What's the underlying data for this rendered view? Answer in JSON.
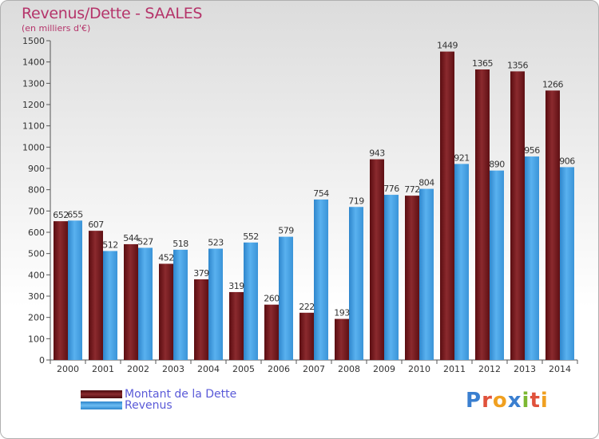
{
  "title": "Revenus/Dette - SAALES",
  "subtitle": "(en milliers d'€)",
  "legend": {
    "items": [
      {
        "label": "Montant de la Dette",
        "color": "#7a1f24"
      },
      {
        "label": "Revenus",
        "color": "#3f9de0"
      }
    ]
  },
  "logo": {
    "text": "Proxiti",
    "letters": [
      {
        "ch": "P",
        "color": "#3a7fd0"
      },
      {
        "ch": "r",
        "color": "#e0523c"
      },
      {
        "ch": "o",
        "color": "#f0a020"
      },
      {
        "ch": "x",
        "color": "#3a7fd0"
      },
      {
        "ch": "i",
        "color": "#7cb832"
      },
      {
        "ch": "t",
        "color": "#e0523c"
      },
      {
        "ch": "i",
        "color": "#f0a020"
      }
    ]
  },
  "chart_data": {
    "type": "bar",
    "title": "Revenus/Dette - SAALES",
    "subtitle": "(en milliers d'€)",
    "categories": [
      "2000",
      "2001",
      "2002",
      "2003",
      "2004",
      "2005",
      "2006",
      "2007",
      "2008",
      "2009",
      "2010",
      "2011",
      "2012",
      "2013",
      "2014"
    ],
    "series": [
      {
        "name": "Montant de la Dette",
        "color": "#7a1f24",
        "values": [
          652,
          607,
          544,
          452,
          379,
          319,
          260,
          222,
          193,
          943,
          772,
          1449,
          1365,
          1356,
          1266
        ],
        "labels": [
          "652",
          "607",
          "544",
          "452",
          "379",
          "319",
          "260",
          "222",
          "193",
          "943",
          "772",
          "1449",
          "1365",
          "1356",
          "1266"
        ]
      },
      {
        "name": "Revenus",
        "color": "#3f9de0",
        "values": [
          655,
          512,
          527,
          518,
          523,
          552,
          579,
          754,
          719,
          776,
          804,
          921,
          890,
          956,
          906
        ],
        "labels": [
          "655",
          "512",
          "527",
          "518",
          "523",
          "552",
          "579",
          "754",
          "719",
          "776",
          "804",
          "921",
          "890",
          "956",
          "906"
        ]
      }
    ],
    "ylim": [
      0,
      1500
    ],
    "yticks": [
      0,
      100,
      200,
      300,
      400,
      500,
      600,
      700,
      800,
      900,
      1000,
      1100,
      1200,
      1300,
      1400,
      1500
    ],
    "ytick_labels": [
      "0",
      "100",
      "200",
      "300",
      "400",
      "500",
      "600",
      "700",
      "800",
      "900",
      "1000",
      "1100",
      "1200",
      "1300",
      "1400",
      "1500"
    ],
    "grid": false,
    "legend_position": "bottom-left"
  }
}
